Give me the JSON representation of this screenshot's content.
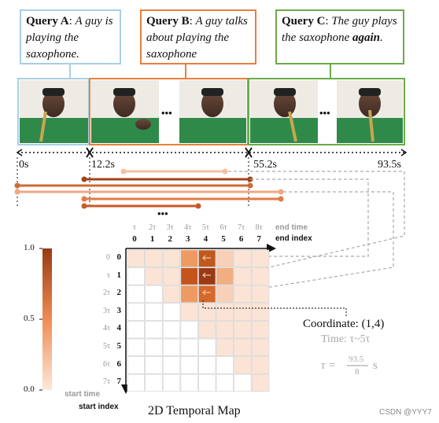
{
  "queries": [
    {
      "id": "A",
      "label": "Query A",
      "text": "A guy is playing the saxophone.",
      "color": "#a8cfe6"
    },
    {
      "id": "B",
      "label": "Query B",
      "text": "A guy talks about playing the saxophone",
      "color": "#e8803a"
    },
    {
      "id": "C",
      "label": "Query C",
      "text_pre": "The guy plays the saxophone ",
      "text_emph": "again",
      "text_post": ".",
      "color": "#6aaa4a"
    }
  ],
  "timeline": {
    "ticks": [
      "0s",
      "12.2s",
      "55.2s",
      "93.5s"
    ],
    "ellipsis": "•••"
  },
  "map": {
    "title": "2D Temporal Map",
    "end_time_label": "end time",
    "end_index_label": "end index",
    "start_time_label": "start time",
    "start_index_label": "start index",
    "indices": [
      "0",
      "1",
      "2",
      "3",
      "4",
      "5",
      "6",
      "7"
    ],
    "taus_top": [
      "τ",
      "2τ",
      "3τ",
      "4τ",
      "5τ",
      "6τ",
      "7τ",
      "8τ"
    ],
    "taus_side": [
      "0",
      "τ",
      "2τ",
      "3τ",
      "4τ",
      "5τ",
      "6τ",
      "7τ"
    ],
    "colorbar": [
      "1.0",
      "0.5",
      "0.0"
    ],
    "coordinate": "Coordinate: (1,4)",
    "time_range": "Time: τ~5τ",
    "formula_lhs": "τ =",
    "formula_num": "93.5",
    "formula_den": "8",
    "formula_unit": "s"
  },
  "watermark": "CSDN @YYY7"
}
